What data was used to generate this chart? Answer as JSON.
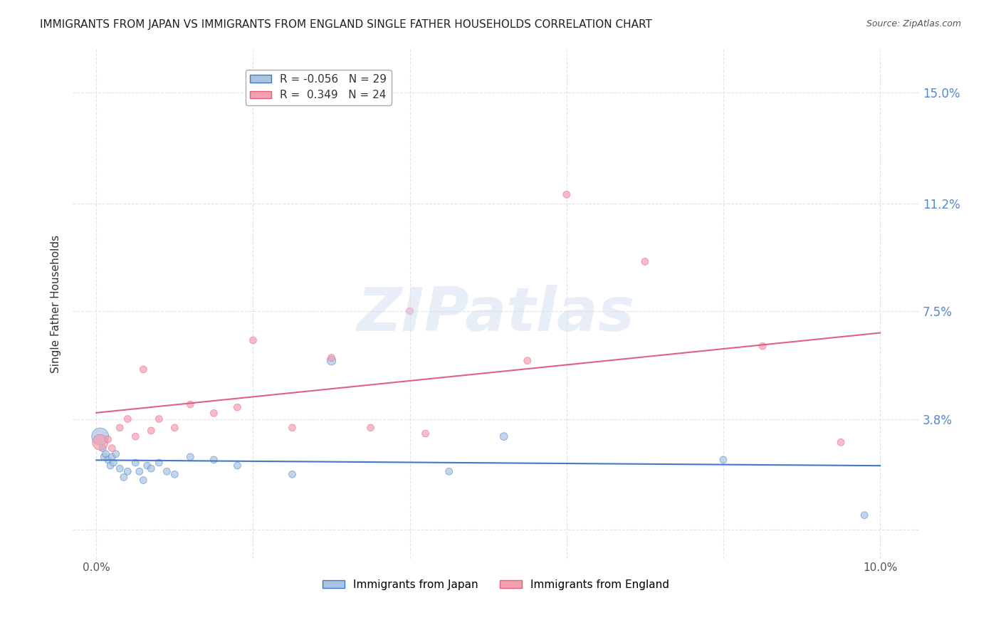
{
  "title": "IMMIGRANTS FROM JAPAN VS IMMIGRANTS FROM ENGLAND SINGLE FATHER HOUSEHOLDS CORRELATION CHART",
  "source": "Source: ZipAtlas.com",
  "ylabel": "Single Father Households",
  "xlim": [
    -0.3,
    10.5
  ],
  "ylim": [
    -1.0,
    16.5
  ],
  "japan_R": -0.056,
  "japan_N": 29,
  "england_R": 0.349,
  "england_N": 24,
  "japan_color": "#a8c4e0",
  "england_color": "#f4a0b0",
  "japan_line_color": "#4477cc",
  "england_line_color": "#e06080",
  "japan_x": [
    0.05,
    0.08,
    0.1,
    0.12,
    0.15,
    0.18,
    0.2,
    0.22,
    0.25,
    0.3,
    0.35,
    0.4,
    0.5,
    0.55,
    0.6,
    0.65,
    0.7,
    0.8,
    0.9,
    1.0,
    1.2,
    1.5,
    1.8,
    2.5,
    3.0,
    4.5,
    5.2,
    8.0,
    9.8
  ],
  "japan_y": [
    3.2,
    2.8,
    2.5,
    2.6,
    2.4,
    2.2,
    2.5,
    2.3,
    2.6,
    2.1,
    1.8,
    2.0,
    2.3,
    2.0,
    1.7,
    2.2,
    2.1,
    2.3,
    2.0,
    1.9,
    2.5,
    2.4,
    2.2,
    1.9,
    5.8,
    2.0,
    3.2,
    2.4,
    0.5
  ],
  "england_x": [
    0.05,
    0.15,
    0.2,
    0.3,
    0.4,
    0.5,
    0.6,
    0.7,
    0.8,
    1.0,
    1.2,
    1.5,
    1.8,
    2.0,
    2.5,
    3.0,
    3.5,
    4.0,
    4.2,
    5.5,
    6.0,
    7.0,
    8.5,
    9.5
  ],
  "england_y": [
    3.0,
    3.1,
    2.8,
    3.5,
    3.8,
    3.2,
    5.5,
    3.4,
    3.8,
    3.5,
    4.3,
    4.0,
    4.2,
    6.5,
    3.5,
    5.9,
    3.5,
    7.5,
    3.3,
    5.8,
    11.5,
    9.2,
    6.3,
    3.0
  ],
  "japan_marker_sizes": [
    300,
    50,
    50,
    50,
    50,
    50,
    50,
    50,
    50,
    50,
    50,
    50,
    50,
    50,
    50,
    50,
    50,
    50,
    50,
    50,
    50,
    50,
    50,
    50,
    80,
    50,
    60,
    50,
    50
  ],
  "england_marker_sizes": [
    250,
    50,
    50,
    50,
    50,
    50,
    50,
    50,
    50,
    50,
    50,
    50,
    50,
    50,
    50,
    50,
    50,
    50,
    50,
    50,
    50,
    50,
    50,
    50
  ],
  "background_color": "#ffffff",
  "watermark": "ZIPatlas",
  "watermark_color": "#d0dff0",
  "grid_color": "#dddddd",
  "x_tick_positions": [
    0.0,
    2.0,
    4.0,
    6.0,
    8.0,
    10.0
  ],
  "x_tick_labels": [
    "0.0%",
    "",
    "",
    "",
    "",
    "10.0%"
  ],
  "y_tick_positions": [
    0.0,
    3.8,
    7.5,
    11.2,
    15.0
  ],
  "y_tick_labels": [
    "",
    "3.8%",
    "7.5%",
    "11.2%",
    "15.0%"
  ]
}
